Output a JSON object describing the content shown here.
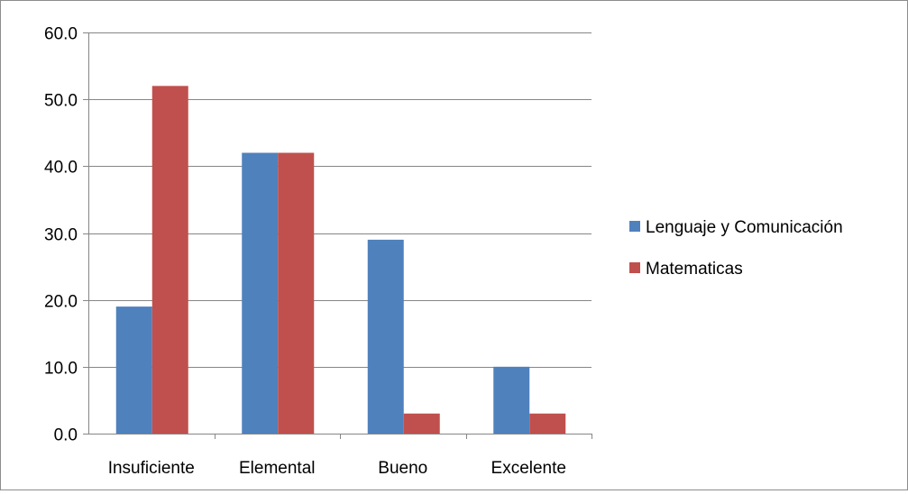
{
  "chart_data": {
    "type": "bar",
    "categories": [
      "Insuficiente",
      "Elemental",
      "Bueno",
      "Excelente"
    ],
    "series": [
      {
        "name": "Lenguaje y Comunicación",
        "values": [
          19.0,
          42.0,
          29.0,
          10.0
        ],
        "color": "#4f81bd"
      },
      {
        "name": "Matematicas",
        "values": [
          52.0,
          42.0,
          3.0,
          3.0
        ],
        "color": "#c0504d"
      }
    ],
    "title": "",
    "xlabel": "",
    "ylabel": "",
    "ylim": [
      0,
      60
    ],
    "yticks": [
      "0.0",
      "10.0",
      "20.0",
      "30.0",
      "40.0",
      "50.0",
      "60.0"
    ],
    "grid": true,
    "legend": "right"
  }
}
